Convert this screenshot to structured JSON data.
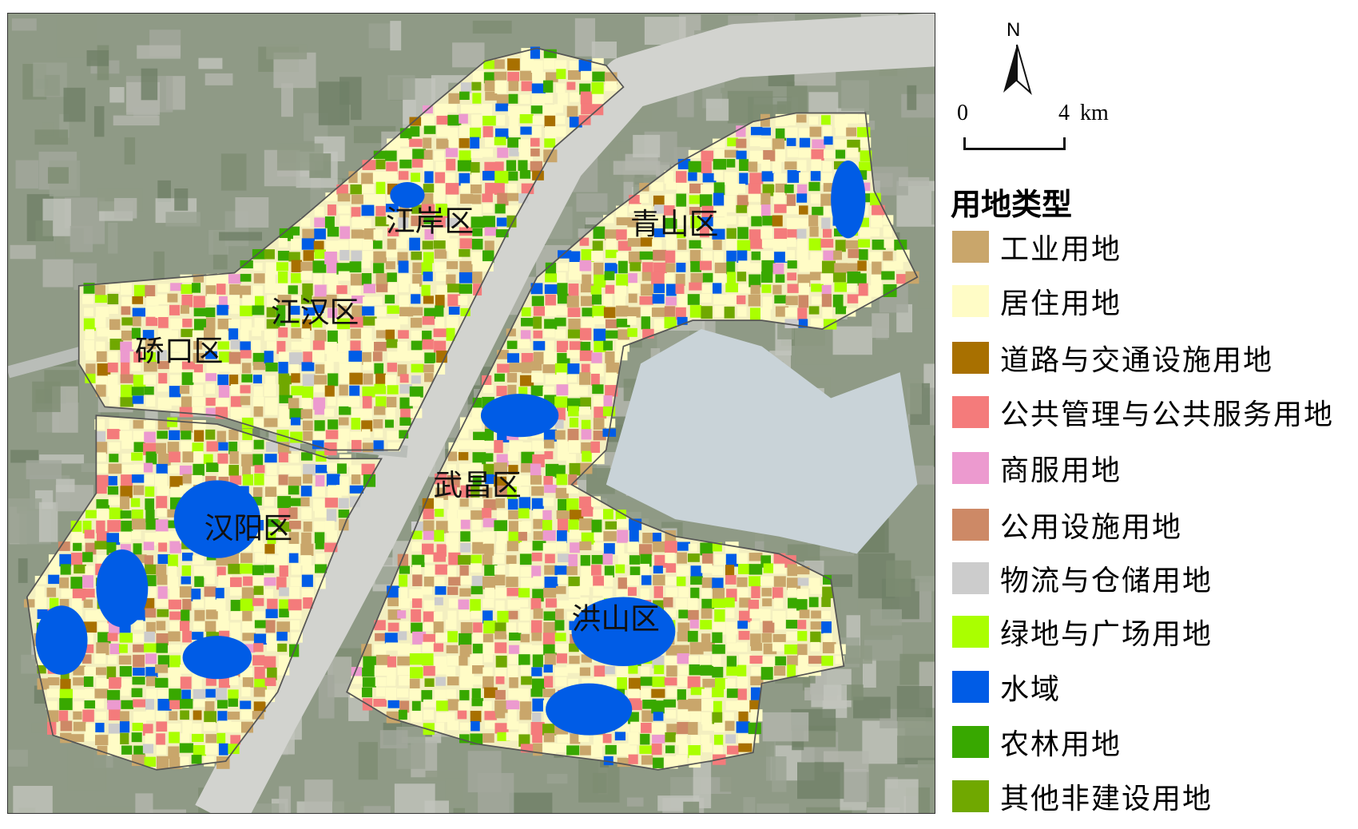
{
  "districts": [
    {
      "name": "江岸区"
    },
    {
      "name": "江汉区"
    },
    {
      "name": "硚口区"
    },
    {
      "name": "青山区"
    },
    {
      "name": "武昌区"
    },
    {
      "name": "汉阳区"
    },
    {
      "name": "洪山区"
    }
  ],
  "north": {
    "label": "N",
    "icon": "north-arrow-icon"
  },
  "scale": {
    "start": "0",
    "end": "4",
    "unit": "km"
  },
  "legend": {
    "title": "用地类型",
    "items": [
      {
        "label": "工业用地",
        "color": "#C9A66B"
      },
      {
        "label": "居住用地",
        "color": "#FFFCC6"
      },
      {
        "label": "道路与交通设施用地",
        "color": "#A87000"
      },
      {
        "label": "公共管理与公共服务用地",
        "color": "#F47B7B"
      },
      {
        "label": "商服用地",
        "color": "#EC9ACF"
      },
      {
        "label": "公用设施用地",
        "color": "#CD8966"
      },
      {
        "label": "物流与仓储用地",
        "color": "#CCCCCC"
      },
      {
        "label": "绿地与广场用地",
        "color": "#AAFF00"
      },
      {
        "label": "水域",
        "color": "#005CE6"
      },
      {
        "label": "农林用地",
        "color": "#38A800"
      },
      {
        "label": "其他非建设用地",
        "color": "#70A800"
      }
    ]
  }
}
